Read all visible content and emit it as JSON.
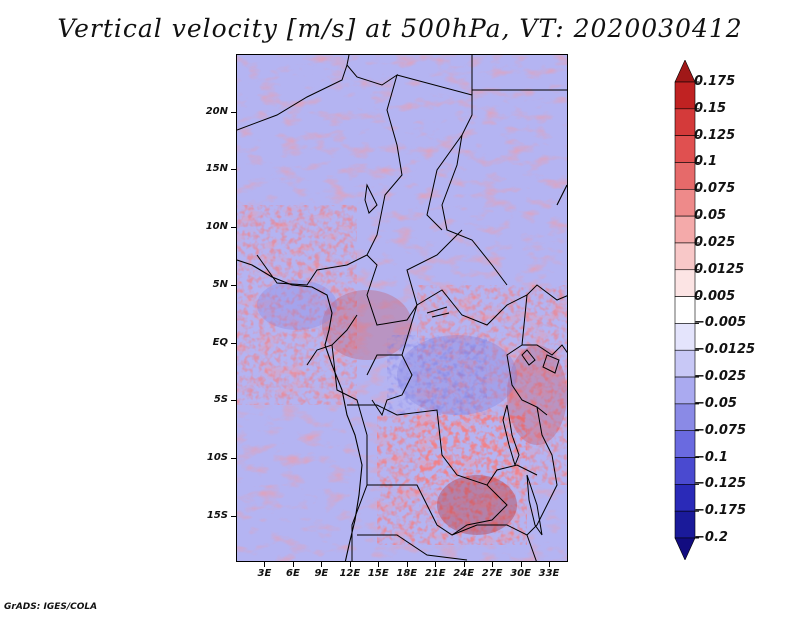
{
  "title": "Vertical velocity [m/s] at 500hPa, VT: 2020030412",
  "credit": "GrADS: IGES/COLA",
  "map": {
    "region": "Central Africa",
    "lat_range": [
      -19,
      25
    ],
    "lon_range": [
      0,
      35
    ],
    "y_ticks": [
      {
        "label": "20N",
        "lat": 20
      },
      {
        "label": "15N",
        "lat": 15
      },
      {
        "label": "10N",
        "lat": 10
      },
      {
        "label": "5N",
        "lat": 5
      },
      {
        "label": "EQ",
        "lat": 0
      },
      {
        "label": "5S",
        "lat": -5
      },
      {
        "label": "10S",
        "lat": -10
      },
      {
        "label": "15S",
        "lat": -15
      }
    ],
    "x_ticks": [
      {
        "label": "3E",
        "lon": 3
      },
      {
        "label": "6E",
        "lon": 6
      },
      {
        "label": "9E",
        "lon": 9
      },
      {
        "label": "12E",
        "lon": 12
      },
      {
        "label": "15E",
        "lon": 15
      },
      {
        "label": "18E",
        "lon": 18
      },
      {
        "label": "21E",
        "lon": 21
      },
      {
        "label": "24E",
        "lon": 24
      },
      {
        "label": "27E",
        "lon": 27
      },
      {
        "label": "30E",
        "lon": 30
      },
      {
        "label": "33E",
        "lon": 33
      }
    ]
  },
  "colorbar": {
    "levels": [
      "0.175",
      "0.15",
      "0.125",
      "0.1",
      "0.075",
      "0.05",
      "0.025",
      "0.0125",
      "0.005",
      "−0.005",
      "−0.0125",
      "−0.025",
      "−0.05",
      "−0.075",
      "−0.1",
      "−0.125",
      "−0.175",
      "−0.2"
    ],
    "colors": [
      "#a01818",
      "#c02222",
      "#d43a3a",
      "#e05050",
      "#e66a6a",
      "#ee8a8a",
      "#f4aaaa",
      "#f8c8c8",
      "#fce4e4",
      "#ffffff",
      "#e4e4fc",
      "#c8c8f6",
      "#aaaaf0",
      "#8a8ae6",
      "#6a6ae0",
      "#4a4ad0",
      "#2a2ab8",
      "#1a1a9a",
      "#120c80"
    ]
  }
}
